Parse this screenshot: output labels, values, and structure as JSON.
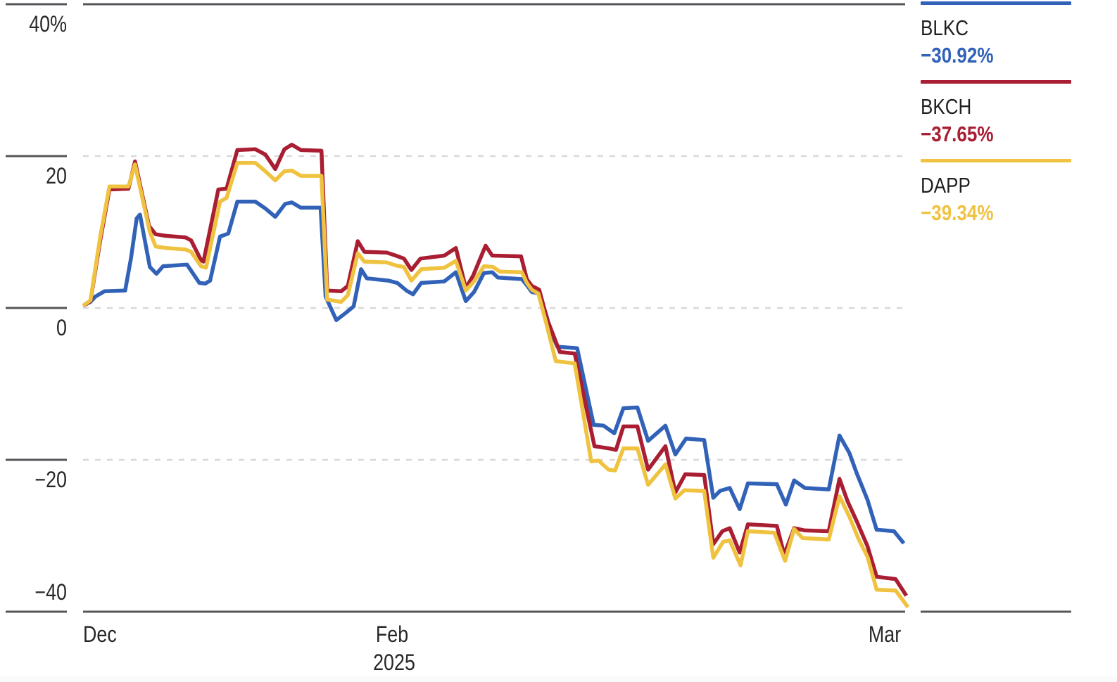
{
  "colors": {
    "axis": "#55565a",
    "grid": "#d8d8d8",
    "text": "#26282a",
    "background": "#ffffff"
  },
  "chart_data": {
    "type": "line",
    "unit": "percent-return",
    "x_axis": {
      "ticks": [
        {
          "label": "Dec",
          "t": 0.0,
          "align": "left"
        },
        {
          "label": "Feb",
          "t": 0.374,
          "align": "center",
          "sublabel": "2025"
        },
        {
          "label": "Mar",
          "t": 0.972,
          "align": "center"
        }
      ]
    },
    "y_axis": {
      "min": -40,
      "max": 40,
      "ticks": [
        {
          "label": "40%",
          "v": 40
        },
        {
          "label": "20",
          "v": 20
        },
        {
          "label": "0",
          "v": 0
        },
        {
          "label": "−20",
          "v": -20
        },
        {
          "label": "−40",
          "v": -40
        }
      ],
      "gridline_values": [
        20,
        0,
        -20
      ]
    },
    "series": [
      {
        "name": "BLKC",
        "change_label": "−30.92%",
        "final_value": -30.92,
        "color": "#3162b8",
        "points": [
          [
            0.0,
            0.3
          ],
          [
            0.009,
            0.8
          ],
          [
            0.015,
            1.5
          ],
          [
            0.026,
            2.2
          ],
          [
            0.051,
            2.3
          ],
          [
            0.058,
            6.5
          ],
          [
            0.065,
            11.8
          ],
          [
            0.069,
            12.3
          ],
          [
            0.081,
            5.4
          ],
          [
            0.089,
            4.5
          ],
          [
            0.097,
            5.5
          ],
          [
            0.126,
            5.7
          ],
          [
            0.141,
            3.3
          ],
          [
            0.148,
            3.2
          ],
          [
            0.154,
            3.6
          ],
          [
            0.166,
            9.4
          ],
          [
            0.176,
            9.8
          ],
          [
            0.187,
            14.0
          ],
          [
            0.209,
            14.0
          ],
          [
            0.221,
            13.1
          ],
          [
            0.233,
            12.0
          ],
          [
            0.245,
            13.7
          ],
          [
            0.253,
            13.9
          ],
          [
            0.264,
            13.2
          ],
          [
            0.288,
            13.2
          ],
          [
            0.294,
            1.5
          ],
          [
            0.307,
            -1.6
          ],
          [
            0.319,
            -0.6
          ],
          [
            0.328,
            0.2
          ],
          [
            0.337,
            5.1
          ],
          [
            0.344,
            3.9
          ],
          [
            0.37,
            3.6
          ],
          [
            0.381,
            3.3
          ],
          [
            0.392,
            2.3
          ],
          [
            0.4,
            1.8
          ],
          [
            0.41,
            3.3
          ],
          [
            0.438,
            3.5
          ],
          [
            0.452,
            4.7
          ],
          [
            0.464,
            0.9
          ],
          [
            0.474,
            2.1
          ],
          [
            0.486,
            4.6
          ],
          [
            0.496,
            4.7
          ],
          [
            0.503,
            4.0
          ],
          [
            0.532,
            3.8
          ],
          [
            0.538,
            3.0
          ],
          [
            0.544,
            2.1
          ],
          [
            0.553,
            1.9
          ],
          [
            0.562,
            -1.1
          ],
          [
            0.567,
            -3.1
          ],
          [
            0.575,
            -5.1
          ],
          [
            0.599,
            -5.3
          ],
          [
            0.619,
            -15.4
          ],
          [
            0.631,
            -15.5
          ],
          [
            0.644,
            -16.5
          ],
          [
            0.655,
            -13.2
          ],
          [
            0.672,
            -13.1
          ],
          [
            0.685,
            -17.5
          ],
          [
            0.706,
            -15.5
          ],
          [
            0.718,
            -19.3
          ],
          [
            0.731,
            -17.2
          ],
          [
            0.753,
            -17.4
          ],
          [
            0.764,
            -25.0
          ],
          [
            0.772,
            -24.1
          ],
          [
            0.784,
            -23.7
          ],
          [
            0.796,
            -26.5
          ],
          [
            0.806,
            -23.1
          ],
          [
            0.841,
            -23.2
          ],
          [
            0.852,
            -25.9
          ],
          [
            0.862,
            -22.7
          ],
          [
            0.875,
            -23.7
          ],
          [
            0.904,
            -23.9
          ],
          [
            0.917,
            -16.8
          ],
          [
            0.929,
            -19.1
          ],
          [
            0.938,
            -21.8
          ],
          [
            0.944,
            -23.4
          ],
          [
            0.951,
            -25.3
          ],
          [
            0.962,
            -29.2
          ],
          [
            0.983,
            -29.4
          ],
          [
            0.995,
            -31.0
          ]
        ]
      },
      {
        "name": "BKCH",
        "change_label": "−37.65%",
        "final_value": -37.65,
        "color": "#a91e32",
        "points": [
          [
            0.0,
            0.3
          ],
          [
            0.009,
            0.9
          ],
          [
            0.021,
            9.0
          ],
          [
            0.032,
            15.6
          ],
          [
            0.055,
            15.7
          ],
          [
            0.063,
            19.3
          ],
          [
            0.08,
            10.8
          ],
          [
            0.088,
            9.7
          ],
          [
            0.1,
            9.5
          ],
          [
            0.124,
            9.3
          ],
          [
            0.131,
            8.9
          ],
          [
            0.143,
            6.3
          ],
          [
            0.146,
            6.1
          ],
          [
            0.164,
            15.6
          ],
          [
            0.174,
            15.7
          ],
          [
            0.187,
            20.8
          ],
          [
            0.209,
            20.9
          ],
          [
            0.221,
            20.2
          ],
          [
            0.233,
            18.3
          ],
          [
            0.244,
            20.9
          ],
          [
            0.253,
            21.5
          ],
          [
            0.264,
            20.8
          ],
          [
            0.289,
            20.7
          ],
          [
            0.296,
            2.3
          ],
          [
            0.313,
            2.2
          ],
          [
            0.321,
            2.9
          ],
          [
            0.333,
            8.8
          ],
          [
            0.341,
            7.4
          ],
          [
            0.368,
            7.3
          ],
          [
            0.379,
            6.9
          ],
          [
            0.389,
            6.5
          ],
          [
            0.398,
            5.0
          ],
          [
            0.409,
            6.5
          ],
          [
            0.438,
            6.9
          ],
          [
            0.452,
            7.9
          ],
          [
            0.464,
            2.6
          ],
          [
            0.473,
            4.3
          ],
          [
            0.488,
            8.2
          ],
          [
            0.496,
            6.9
          ],
          [
            0.531,
            6.8
          ],
          [
            0.538,
            3.8
          ],
          [
            0.544,
            2.9
          ],
          [
            0.553,
            2.4
          ],
          [
            0.563,
            -1.6
          ],
          [
            0.578,
            -5.8
          ],
          [
            0.596,
            -6.0
          ],
          [
            0.62,
            -18.2
          ],
          [
            0.638,
            -18.5
          ],
          [
            0.646,
            -18.7
          ],
          [
            0.655,
            -15.6
          ],
          [
            0.672,
            -15.6
          ],
          [
            0.685,
            -21.3
          ],
          [
            0.706,
            -18.2
          ],
          [
            0.718,
            -24.3
          ],
          [
            0.73,
            -21.9
          ],
          [
            0.753,
            -22.0
          ],
          [
            0.764,
            -31.1
          ],
          [
            0.775,
            -29.4
          ],
          [
            0.784,
            -29.0
          ],
          [
            0.796,
            -32.2
          ],
          [
            0.806,
            -28.5
          ],
          [
            0.841,
            -28.7
          ],
          [
            0.85,
            -32.5
          ],
          [
            0.862,
            -29.0
          ],
          [
            0.875,
            -29.3
          ],
          [
            0.904,
            -29.4
          ],
          [
            0.917,
            -22.5
          ],
          [
            0.927,
            -25.5
          ],
          [
            0.938,
            -28.1
          ],
          [
            0.951,
            -31.4
          ],
          [
            0.962,
            -35.4
          ],
          [
            0.985,
            -35.7
          ],
          [
            0.998,
            -37.9
          ]
        ]
      },
      {
        "name": "DAPP",
        "change_label": "−39.34%",
        "final_value": -39.34,
        "color": "#efc240",
        "points": [
          [
            0.0,
            0.3
          ],
          [
            0.009,
            1.0
          ],
          [
            0.021,
            9.5
          ],
          [
            0.032,
            16.0
          ],
          [
            0.055,
            16.0
          ],
          [
            0.063,
            18.9
          ],
          [
            0.081,
            10.0
          ],
          [
            0.088,
            8.1
          ],
          [
            0.1,
            7.9
          ],
          [
            0.124,
            7.7
          ],
          [
            0.131,
            7.4
          ],
          [
            0.143,
            5.5
          ],
          [
            0.149,
            5.3
          ],
          [
            0.166,
            14.0
          ],
          [
            0.174,
            14.5
          ],
          [
            0.187,
            19.1
          ],
          [
            0.209,
            19.1
          ],
          [
            0.221,
            18.0
          ],
          [
            0.233,
            16.8
          ],
          [
            0.244,
            18.0
          ],
          [
            0.253,
            18.1
          ],
          [
            0.264,
            17.4
          ],
          [
            0.289,
            17.4
          ],
          [
            0.296,
            1.1
          ],
          [
            0.313,
            0.8
          ],
          [
            0.321,
            1.7
          ],
          [
            0.333,
            7.2
          ],
          [
            0.341,
            6.1
          ],
          [
            0.368,
            6.0
          ],
          [
            0.379,
            5.6
          ],
          [
            0.389,
            5.4
          ],
          [
            0.398,
            3.6
          ],
          [
            0.41,
            5.1
          ],
          [
            0.438,
            5.3
          ],
          [
            0.452,
            6.2
          ],
          [
            0.464,
            2.3
          ],
          [
            0.474,
            3.5
          ],
          [
            0.486,
            5.5
          ],
          [
            0.497,
            5.4
          ],
          [
            0.505,
            4.8
          ],
          [
            0.532,
            4.7
          ],
          [
            0.538,
            3.3
          ],
          [
            0.544,
            2.4
          ],
          [
            0.552,
            1.9
          ],
          [
            0.561,
            -1.8
          ],
          [
            0.573,
            -7.0
          ],
          [
            0.596,
            -7.3
          ],
          [
            0.616,
            -20.2
          ],
          [
            0.625,
            -20.1
          ],
          [
            0.637,
            -21.3
          ],
          [
            0.645,
            -21.4
          ],
          [
            0.655,
            -18.5
          ],
          [
            0.672,
            -18.5
          ],
          [
            0.685,
            -23.3
          ],
          [
            0.706,
            -20.6
          ],
          [
            0.718,
            -25.1
          ],
          [
            0.729,
            -24.0
          ],
          [
            0.753,
            -24.1
          ],
          [
            0.764,
            -32.9
          ],
          [
            0.776,
            -30.8
          ],
          [
            0.784,
            -30.6
          ],
          [
            0.797,
            -33.9
          ],
          [
            0.806,
            -29.4
          ],
          [
            0.838,
            -29.6
          ],
          [
            0.851,
            -33.3
          ],
          [
            0.862,
            -29.1
          ],
          [
            0.872,
            -30.3
          ],
          [
            0.904,
            -30.5
          ],
          [
            0.917,
            -24.8
          ],
          [
            0.929,
            -27.5
          ],
          [
            0.94,
            -30.4
          ],
          [
            0.951,
            -32.8
          ],
          [
            0.962,
            -37.1
          ],
          [
            0.985,
            -37.2
          ],
          [
            1.0,
            -39.4
          ]
        ]
      }
    ]
  }
}
